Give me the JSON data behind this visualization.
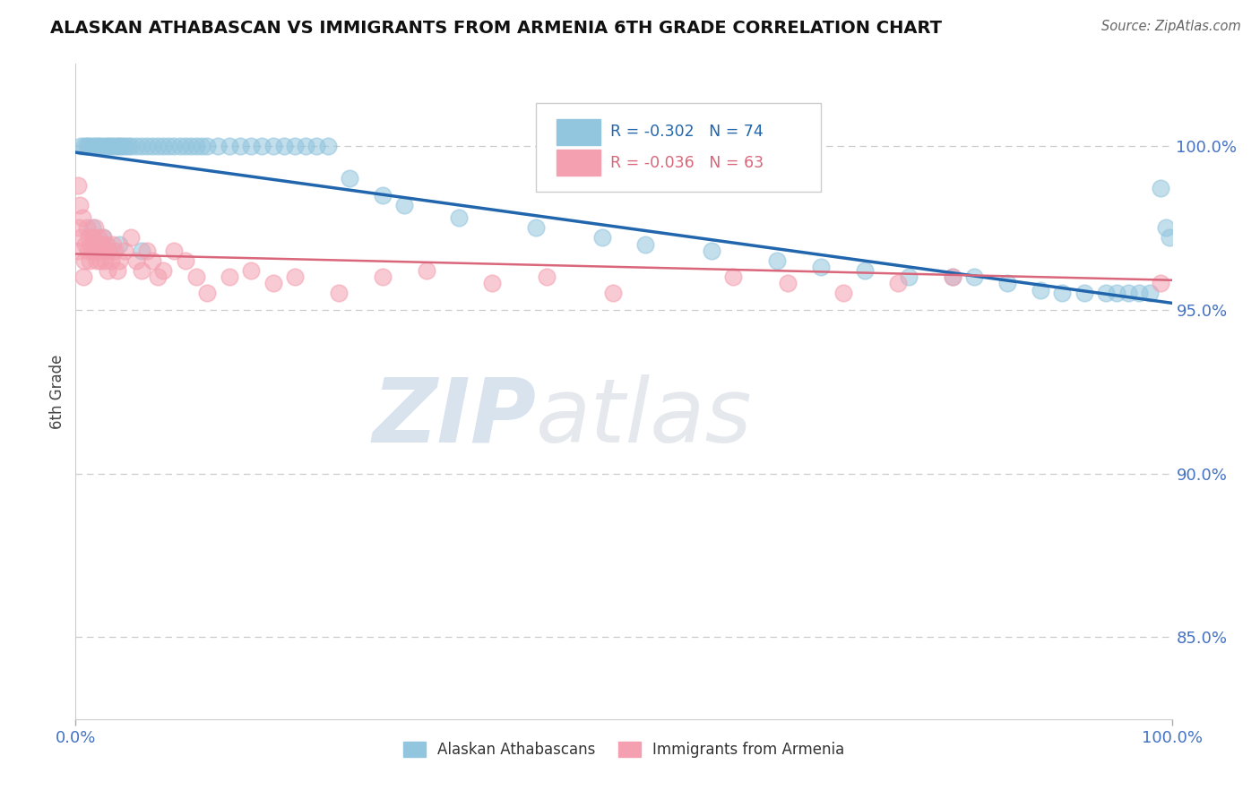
{
  "title": "ALASKAN ATHABASCAN VS IMMIGRANTS FROM ARMENIA 6TH GRADE CORRELATION CHART",
  "source": "Source: ZipAtlas.com",
  "ylabel": "6th Grade",
  "y_tick_labels": [
    "100.0%",
    "95.0%",
    "90.0%",
    "85.0%"
  ],
  "y_tick_values": [
    1.0,
    0.95,
    0.9,
    0.85
  ],
  "xlim": [
    0.0,
    1.0
  ],
  "ylim": [
    0.825,
    1.025
  ],
  "legend_blue_label": "Alaskan Athabascans",
  "legend_pink_label": "Immigrants from Armenia",
  "R_blue": -0.302,
  "N_blue": 74,
  "R_pink": -0.036,
  "N_pink": 63,
  "blue_color": "#92C5DE",
  "pink_color": "#F4A0B0",
  "blue_line_color": "#2166AC",
  "pink_line_color": "#D9667A",
  "watermark_zip": "ZIP",
  "watermark_atlas": "atlas",
  "grid_color": "#CCCCCC",
  "background_color": "#FFFFFF",
  "blue_scatter_x": [
    0.005,
    0.008,
    0.01,
    0.012,
    0.015,
    0.018,
    0.02,
    0.022,
    0.025,
    0.028,
    0.03,
    0.032,
    0.035,
    0.038,
    0.04,
    0.042,
    0.045,
    0.048,
    0.05,
    0.055,
    0.06,
    0.065,
    0.07,
    0.075,
    0.08,
    0.085,
    0.09,
    0.095,
    0.1,
    0.105,
    0.11,
    0.115,
    0.12,
    0.13,
    0.14,
    0.15,
    0.16,
    0.17,
    0.18,
    0.19,
    0.2,
    0.21,
    0.22,
    0.23,
    0.25,
    0.28,
    0.3,
    0.35,
    0.42,
    0.48,
    0.52,
    0.58,
    0.64,
    0.68,
    0.72,
    0.76,
    0.8,
    0.82,
    0.85,
    0.88,
    0.9,
    0.92,
    0.94,
    0.95,
    0.96,
    0.97,
    0.98,
    0.99,
    0.995,
    0.998,
    0.015,
    0.025,
    0.04,
    0.06
  ],
  "blue_scatter_y": [
    1.0,
    1.0,
    1.0,
    1.0,
    1.0,
    1.0,
    1.0,
    1.0,
    1.0,
    1.0,
    1.0,
    1.0,
    1.0,
    1.0,
    1.0,
    1.0,
    1.0,
    1.0,
    1.0,
    1.0,
    1.0,
    1.0,
    1.0,
    1.0,
    1.0,
    1.0,
    1.0,
    1.0,
    1.0,
    1.0,
    1.0,
    1.0,
    1.0,
    1.0,
    1.0,
    1.0,
    1.0,
    1.0,
    1.0,
    1.0,
    1.0,
    1.0,
    1.0,
    1.0,
    0.99,
    0.985,
    0.982,
    0.978,
    0.975,
    0.972,
    0.97,
    0.968,
    0.965,
    0.963,
    0.962,
    0.96,
    0.96,
    0.96,
    0.958,
    0.956,
    0.955,
    0.955,
    0.955,
    0.955,
    0.955,
    0.955,
    0.955,
    0.987,
    0.975,
    0.972,
    0.975,
    0.972,
    0.97,
    0.968
  ],
  "pink_scatter_x": [
    0.002,
    0.003,
    0.005,
    0.006,
    0.007,
    0.008,
    0.009,
    0.01,
    0.011,
    0.012,
    0.013,
    0.014,
    0.015,
    0.016,
    0.017,
    0.018,
    0.019,
    0.02,
    0.021,
    0.022,
    0.023,
    0.024,
    0.025,
    0.026,
    0.027,
    0.028,
    0.029,
    0.03,
    0.032,
    0.034,
    0.036,
    0.038,
    0.04,
    0.045,
    0.05,
    0.055,
    0.06,
    0.065,
    0.07,
    0.075,
    0.08,
    0.09,
    0.1,
    0.11,
    0.12,
    0.14,
    0.16,
    0.18,
    0.2,
    0.24,
    0.28,
    0.32,
    0.38,
    0.43,
    0.49,
    0.6,
    0.65,
    0.7,
    0.75,
    0.8,
    0.002,
    0.004,
    0.99
  ],
  "pink_scatter_y": [
    0.968,
    0.975,
    0.972,
    0.978,
    0.96,
    0.965,
    0.97,
    0.975,
    0.968,
    0.972,
    0.965,
    0.97,
    0.968,
    0.972,
    0.968,
    0.975,
    0.965,
    0.97,
    0.972,
    0.968,
    0.965,
    0.97,
    0.972,
    0.968,
    0.965,
    0.97,
    0.962,
    0.968,
    0.965,
    0.97,
    0.968,
    0.962,
    0.965,
    0.968,
    0.972,
    0.965,
    0.962,
    0.968,
    0.965,
    0.96,
    0.962,
    0.968,
    0.965,
    0.96,
    0.955,
    0.96,
    0.962,
    0.958,
    0.96,
    0.955,
    0.96,
    0.962,
    0.958,
    0.96,
    0.955,
    0.96,
    0.958,
    0.955,
    0.958,
    0.96,
    0.988,
    0.982,
    0.958
  ]
}
